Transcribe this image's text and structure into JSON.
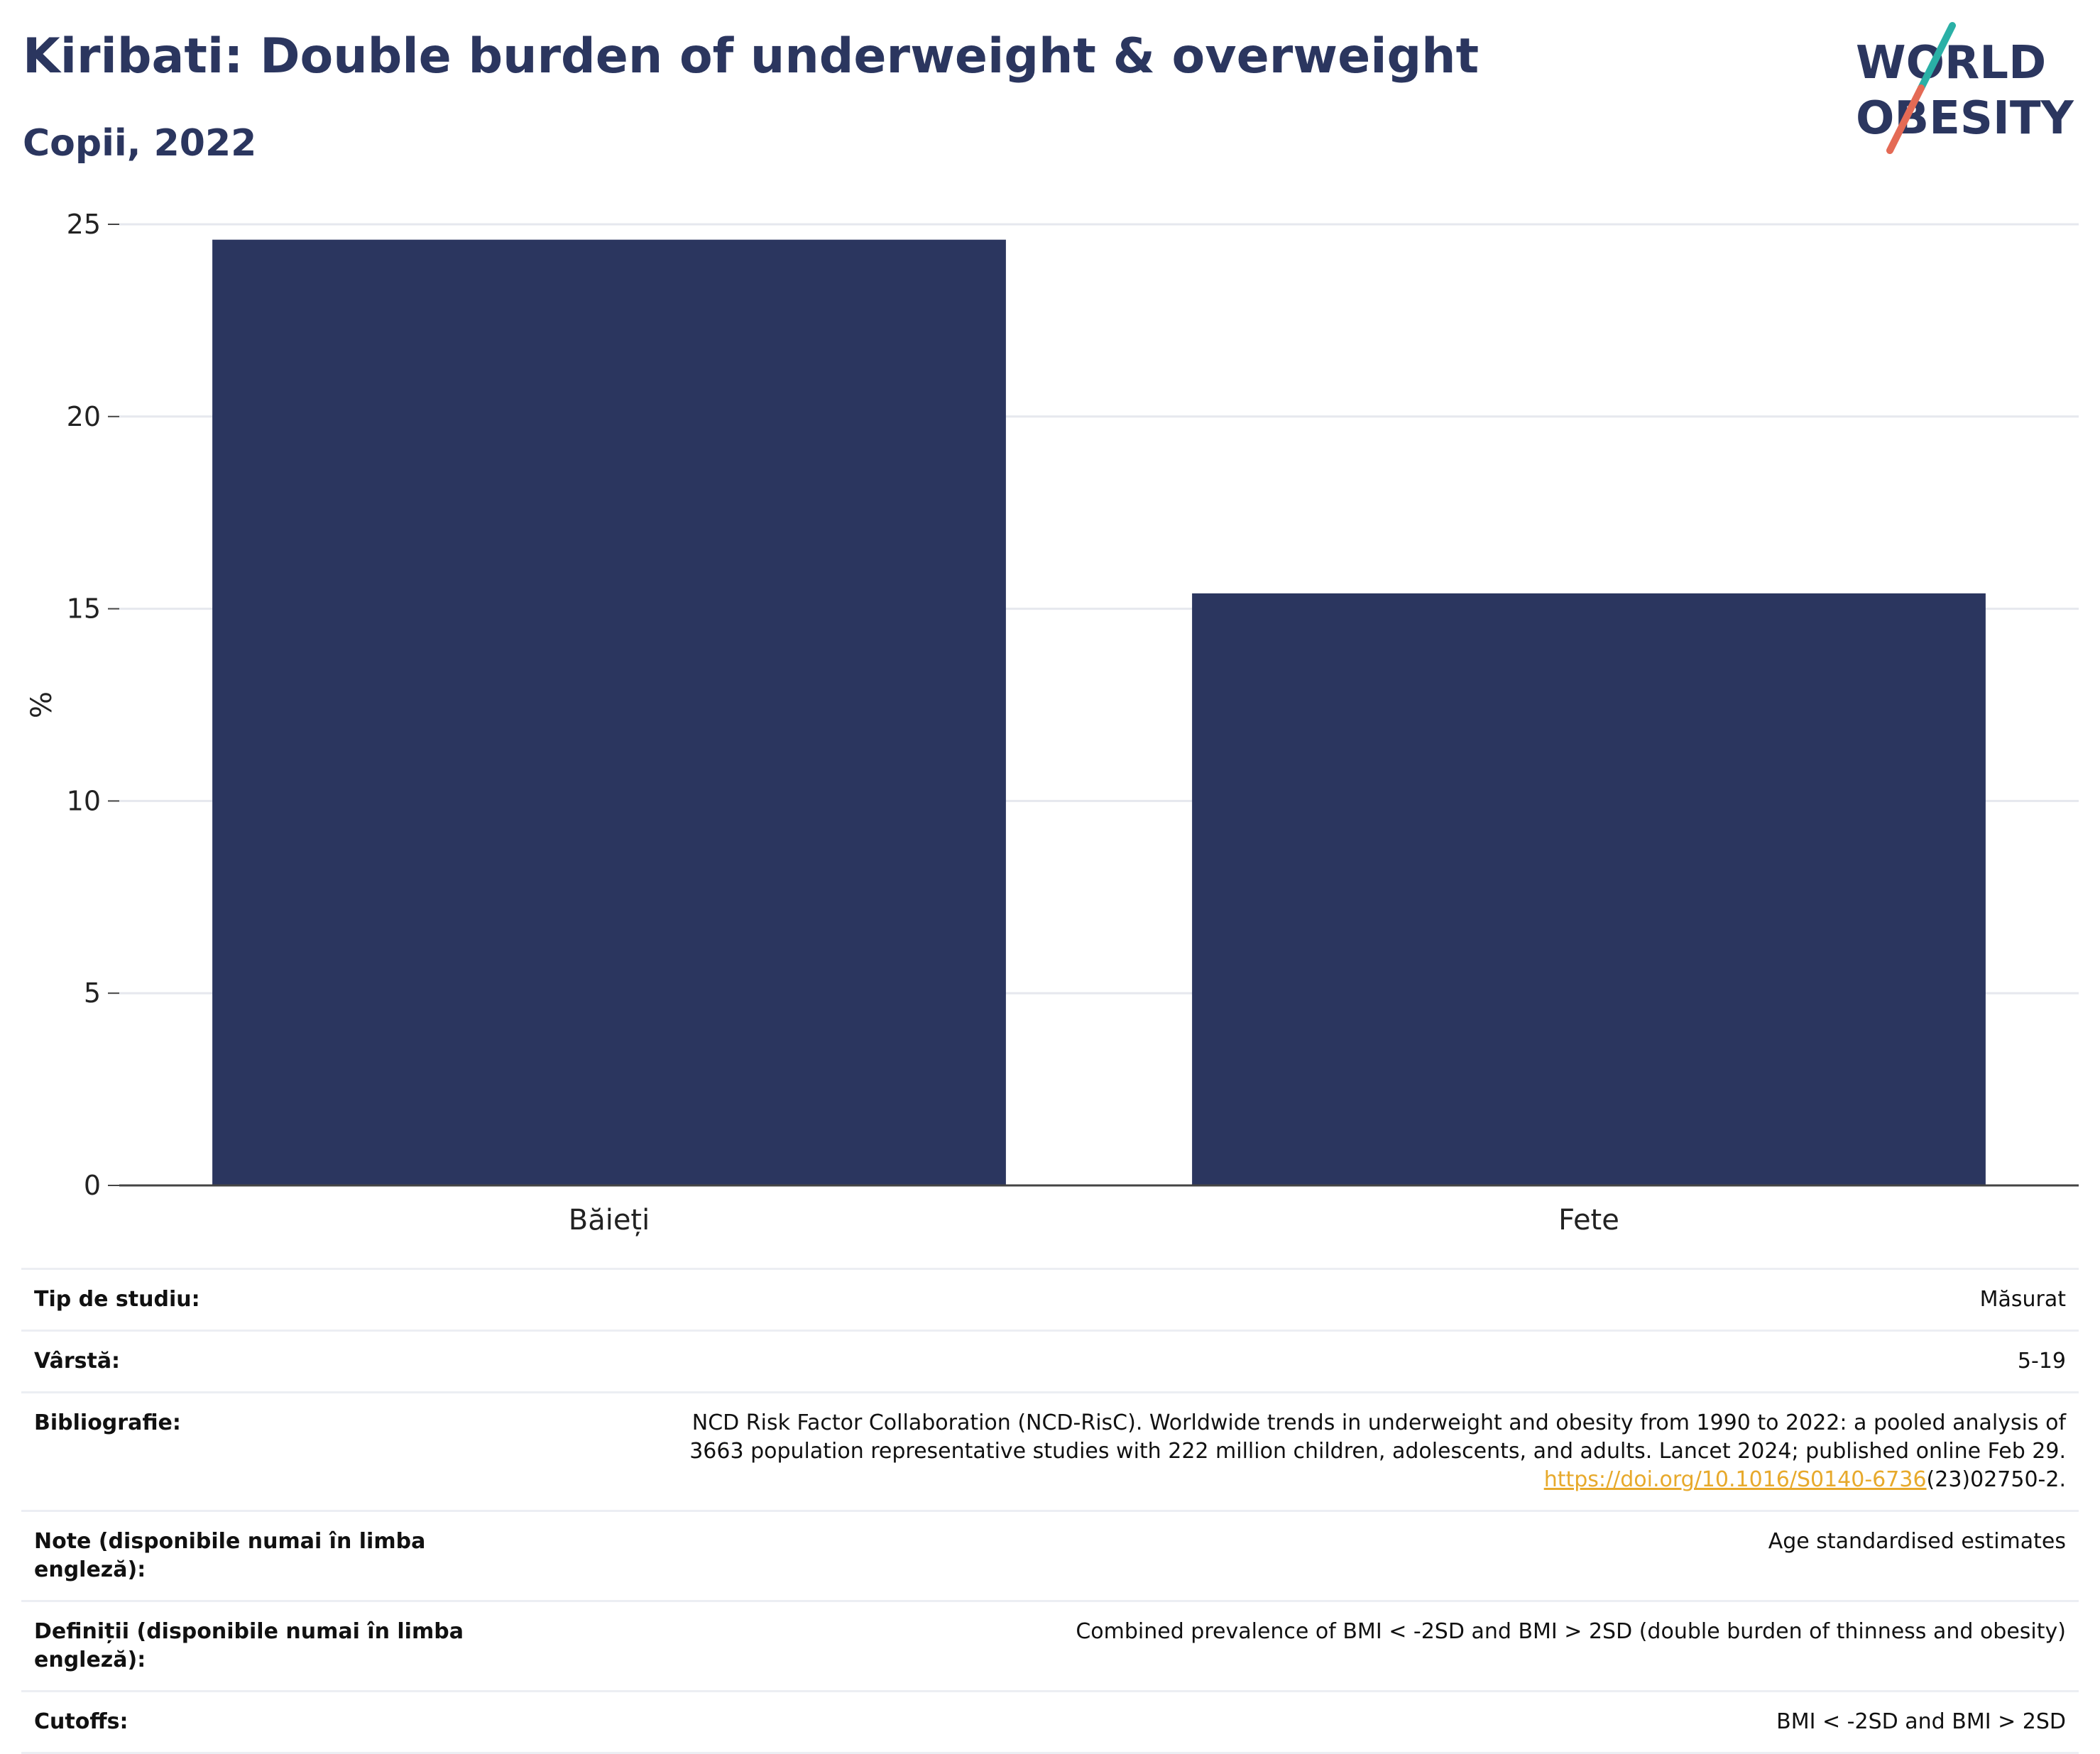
{
  "header": {
    "title": "Kiribati: Double burden of underweight & overweight",
    "subtitle": "Copii, 2022"
  },
  "logo": {
    "line1": "WORLD",
    "line2": "OBESITY",
    "colors": {
      "text": "#2b365f",
      "slash_top": "#2ab0a6",
      "slash_bottom": "#e46a55"
    }
  },
  "chart_data": {
    "type": "bar",
    "categories": [
      "Băieți",
      "Fete"
    ],
    "values": [
      24.6,
      15.4
    ],
    "ylabel": "%",
    "ylim": [
      0,
      25
    ],
    "yticks": [
      0,
      5,
      10,
      15,
      20,
      25
    ],
    "grid": true,
    "bar_color": "#2b365f"
  },
  "info": {
    "rows": [
      {
        "key": "Tip de studiu:",
        "value": "Măsurat"
      },
      {
        "key": "Vârstă:",
        "value": "5-19"
      },
      {
        "key": "Bibliografie:",
        "value_line1": "NCD Risk Factor Collaboration (NCD-RisC). Worldwide trends in underweight and obesity from 1990 to 2022: a pooled analysis of",
        "value_line2": "3663 population representative studies with 222 million children, adolescents, and adults. Lancet 2024; published online Feb 29.",
        "link": "https://doi.org/10.1016/S0140-6736",
        "link_suffix": "(23)02750-2."
      },
      {
        "key": "Note (disponibile numai în limba engleză):",
        "value": "Age standardised estimates"
      },
      {
        "key": "Definiții (disponibile numai în limba engleză):",
        "value": "Combined prevalence of BMI < -2SD and BMI > 2SD (double burden of thinness and obesity)"
      },
      {
        "key": "Cutoffs:",
        "value": "BMI < -2SD and BMI > 2SD"
      }
    ]
  }
}
